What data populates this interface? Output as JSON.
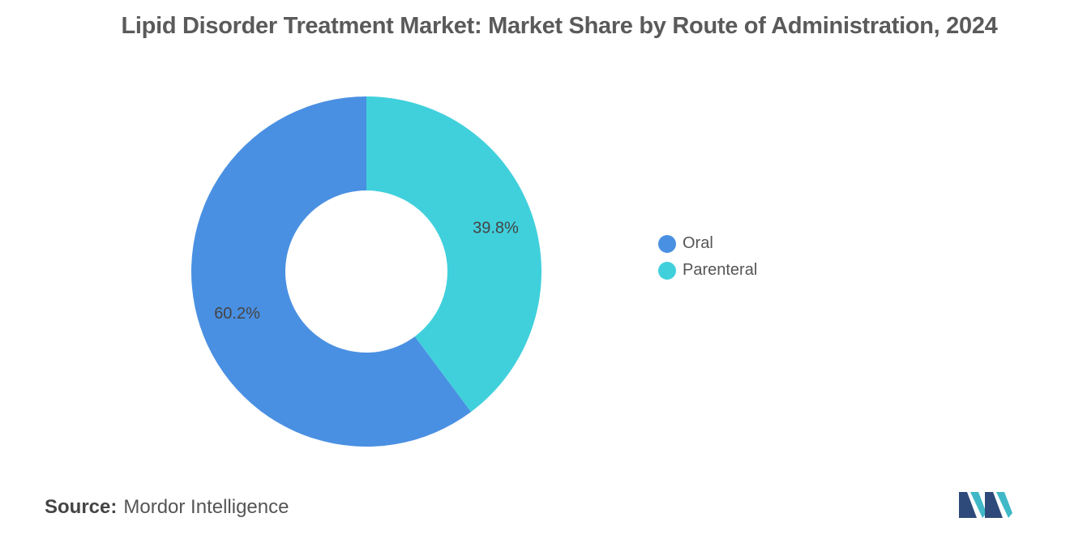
{
  "chart_data": {
    "type": "pie",
    "style": "donut",
    "title": "Lipid Disorder Treatment Market: Market Share by Route of Administration, 2024",
    "categories": [
      "Oral",
      "Parenteral"
    ],
    "values": [
      60.2,
      39.8
    ],
    "value_labels": [
      "60.2%",
      "39.8%"
    ],
    "colors": [
      "#4a90e2",
      "#40d0dc"
    ],
    "legend_position": "right",
    "start_angle_deg": 0,
    "direction": "counterclockwise"
  },
  "legend": {
    "items": [
      {
        "label": "Oral",
        "color": "#4a90e2"
      },
      {
        "label": "Parenteral",
        "color": "#40d0dc"
      }
    ]
  },
  "source": {
    "label": "Source:",
    "text": "Mordor Intelligence"
  },
  "logo": {
    "icon": "mordor-intelligence-logo-icon",
    "colors": [
      "#2e4a7a",
      "#40b8c8"
    ]
  }
}
